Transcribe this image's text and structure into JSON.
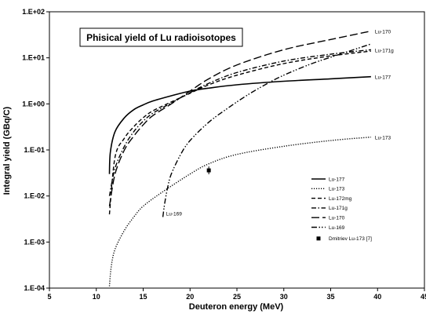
{
  "chart_data": {
    "type": "line",
    "title": "Phisical yield of Lu radioisotopes",
    "xlabel": "Deuteron energy (MeV)",
    "ylabel": "Integral yield (GBq/C)",
    "xlim": [
      5,
      45
    ],
    "ylim": [
      0.0001,
      100
    ],
    "yscale": "log",
    "x_ticks": [
      "5",
      "10",
      "15",
      "20",
      "25",
      "30",
      "35",
      "40",
      "45"
    ],
    "y_ticks": [
      "1.E-04",
      "1.E-03",
      "1.E-02",
      "1.E-01",
      "1.E+00",
      "1.E+01",
      "1.E+02"
    ],
    "grid": false,
    "legend_position": "right",
    "series": [
      {
        "name": "Lu-177",
        "dash": "solid",
        "end_label": "Lu-177",
        "x": [
          11.4,
          11.5,
          12,
          13,
          14,
          15,
          16,
          18,
          20,
          22,
          25,
          30,
          35,
          39.3
        ],
        "y": [
          0.03,
          0.09,
          0.25,
          0.5,
          0.75,
          0.95,
          1.15,
          1.5,
          1.9,
          2.2,
          2.6,
          3.1,
          3.5,
          3.9
        ]
      },
      {
        "name": "Lu-173",
        "dash": "dotted",
        "end_label": "Lu-173",
        "x": [
          11.4,
          11.6,
          12,
          13,
          14,
          15,
          17,
          20,
          22,
          25,
          30,
          35,
          39.3
        ],
        "y": [
          0.00011,
          0.0003,
          0.0007,
          0.0018,
          0.0035,
          0.006,
          0.012,
          0.03,
          0.05,
          0.08,
          0.12,
          0.16,
          0.19
        ]
      },
      {
        "name": "Lu-172mg",
        "dash": "dash-medium",
        "end_label": "",
        "x": [
          11.4,
          12,
          13,
          14,
          15,
          16,
          18,
          20,
          22,
          25,
          30,
          35,
          39.3
        ],
        "y": [
          0.004,
          0.07,
          0.18,
          0.32,
          0.5,
          0.7,
          1.1,
          1.7,
          2.6,
          4.2,
          7.5,
          11,
          14
        ]
      },
      {
        "name": "Lu-171g",
        "dash": "dash-dot",
        "end_label": "Lu-171g",
        "x": [
          11.4,
          12,
          13,
          14,
          15,
          16,
          18,
          20,
          22,
          25,
          30,
          35,
          39.3
        ],
        "y": [
          0.01,
          0.04,
          0.12,
          0.25,
          0.42,
          0.62,
          1.05,
          1.75,
          2.8,
          4.8,
          8.5,
          12,
          15
        ]
      },
      {
        "name": "Lu-170",
        "dash": "long-dash",
        "end_label": "Lu-170",
        "x": [
          11.4,
          12,
          13,
          14,
          15,
          16,
          18,
          20,
          22,
          25,
          30,
          35,
          39.3
        ],
        "y": [
          0.006,
          0.03,
          0.1,
          0.2,
          0.35,
          0.55,
          1.0,
          1.9,
          3.5,
          7,
          15,
          25,
          38
        ]
      },
      {
        "name": "Lu-169",
        "dash": "dash-dot-dot",
        "end_label": "Lu-169",
        "x": [
          17.1,
          17.3,
          17.6,
          18,
          19,
          20,
          22,
          24,
          26,
          28,
          30,
          33,
          36,
          39.3
        ],
        "y": [
          0.0035,
          0.007,
          0.015,
          0.03,
          0.08,
          0.16,
          0.4,
          0.8,
          1.5,
          2.6,
          4.2,
          7.5,
          12,
          20
        ]
      }
    ],
    "points": [
      {
        "name": "Dmitriev Lu-173 [7]",
        "x": 22.0,
        "y": 0.036
      }
    ]
  }
}
